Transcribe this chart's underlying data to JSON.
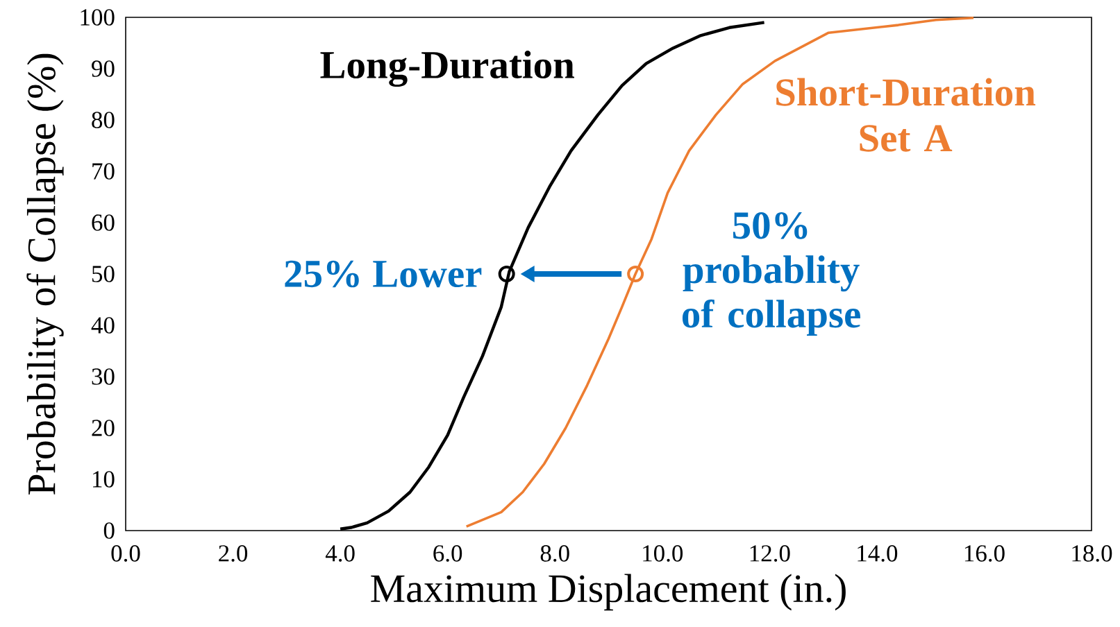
{
  "chart_data": {
    "type": "line",
    "xlabel": "Maximum Displacement (in.)",
    "ylabel": "Probability of Collapse (%)",
    "xlim": [
      0,
      18
    ],
    "ylim": [
      0,
      100
    ],
    "xticks": [
      {
        "value": 0,
        "label": "0.0"
      },
      {
        "value": 2,
        "label": "2.0"
      },
      {
        "value": 4,
        "label": "4.0"
      },
      {
        "value": 6,
        "label": "6.0"
      },
      {
        "value": 8,
        "label": "8.0"
      },
      {
        "value": 10,
        "label": "10.0"
      },
      {
        "value": 12,
        "label": "12.0"
      },
      {
        "value": 14,
        "label": "14.0"
      },
      {
        "value": 16,
        "label": "16.0"
      },
      {
        "value": 18,
        "label": "18.0"
      }
    ],
    "yticks": [
      0,
      10,
      20,
      30,
      40,
      50,
      60,
      70,
      80,
      90,
      100
    ],
    "grid": false,
    "legend": false,
    "marker": "none",
    "line_style": "solid",
    "series": [
      {
        "name": "Long-Duration",
        "color": "#000000",
        "x": [
          4.0,
          4.2,
          4.5,
          4.9,
          5.3,
          5.65,
          6.0,
          6.3,
          6.65,
          7.0,
          7.15,
          7.5,
          7.9,
          8.3,
          8.8,
          9.25,
          9.7,
          10.2,
          10.7,
          11.25,
          11.9
        ],
        "values": [
          0.3,
          0.6,
          1.5,
          3.8,
          7.5,
          12.4,
          18.6,
          26,
          34,
          43.6,
          50.5,
          59,
          67,
          74,
          81,
          86.7,
          91,
          94,
          96.4,
          98,
          99
        ]
      },
      {
        "name": "Short-Duration Set A",
        "color": "#ed7d31",
        "x": [
          6.35,
          7.0,
          7.4,
          7.8,
          8.2,
          8.6,
          9.0,
          9.25,
          9.5,
          9.8,
          10.1,
          10.5,
          11.0,
          11.5,
          12.1,
          13.1,
          14.4,
          15.1,
          15.8
        ],
        "values": [
          0.8,
          3.6,
          7.5,
          13,
          20,
          28.3,
          37.4,
          43.6,
          50,
          56.8,
          65.8,
          74,
          81,
          87,
          91.5,
          97,
          98.5,
          99.5,
          99.9
        ]
      }
    ],
    "annotations": [
      {
        "text": "25% Lower",
        "x": 7.1,
        "y": 50
      },
      {
        "text": "50% probablity of collapse",
        "x": 9.5,
        "y": 50
      }
    ]
  }
}
